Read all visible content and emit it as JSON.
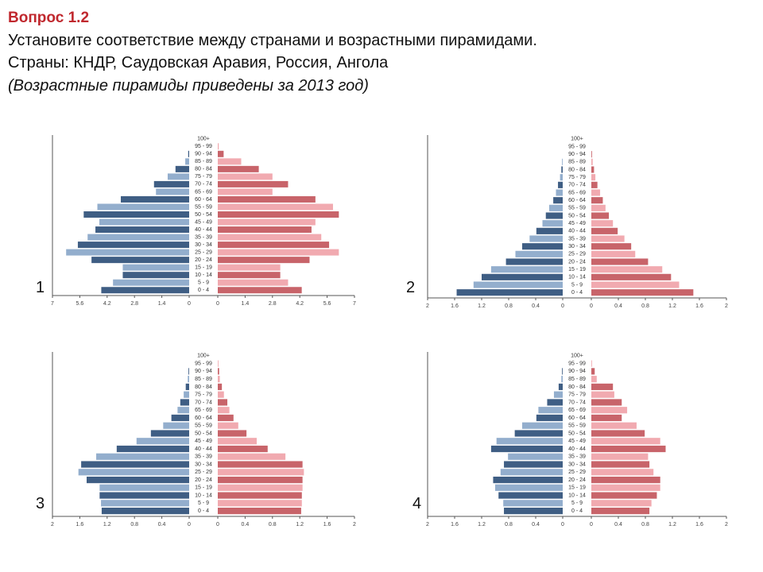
{
  "header": {
    "title": "Вопрос 1.2",
    "lines": [
      "Установите соответствие между странами и возрастными пирамидами.",
      "Страны: КНДР, Саудовская Аравия, Россия, Ангола"
    ],
    "note": "(Возрастные пирамиды приведены за 2013 год)"
  },
  "chart_data": [
    {
      "type": "pyramid",
      "label": "1",
      "categories": [
        "0 - 4",
        "5 - 9",
        "10 - 14",
        "15 - 19",
        "20 - 24",
        "25 - 29",
        "30 - 34",
        "35 - 39",
        "40 - 44",
        "45 - 49",
        "50 - 54",
        "55 - 59",
        "60 - 64",
        "65 - 69",
        "70 - 74",
        "75 - 79",
        "80 - 84",
        "85 - 89",
        "90 - 94",
        "95 - 99",
        "100+"
      ],
      "series": [
        {
          "colors": [
            "#3f5e84",
            "#93aecd"
          ],
          "values": [
            4.5,
            3.9,
            3.4,
            3.4,
            5.0,
            6.3,
            5.7,
            5.2,
            4.8,
            4.6,
            5.4,
            4.7,
            3.5,
            1.7,
            1.8,
            1.1,
            0.7,
            0.2,
            0.05,
            0,
            0
          ]
        },
        {
          "colors": [
            "#c8646a",
            "#f1aab0"
          ],
          "values": [
            4.3,
            3.6,
            3.2,
            3.2,
            4.7,
            6.2,
            5.7,
            5.3,
            4.8,
            5.0,
            6.2,
            5.9,
            5.0,
            2.8,
            3.6,
            2.8,
            2.1,
            1.2,
            0.3,
            0.05,
            0
          ]
        }
      ],
      "xlim": [
        0,
        7
      ],
      "xticks": [
        0,
        1.4,
        2.8,
        4.2,
        5.6,
        7
      ]
    },
    {
      "type": "pyramid",
      "label": "2",
      "categories": [
        "0 - 4",
        "5 - 9",
        "10 - 14",
        "15 - 19",
        "20 - 24",
        "25 - 29",
        "30 - 34",
        "35 - 39",
        "40 - 44",
        "45 - 49",
        "50 - 54",
        "55 - 59",
        "60 - 64",
        "65 - 69",
        "70 - 74",
        "75 - 79",
        "80 - 84",
        "85 - 89",
        "90 - 94",
        "95 - 99",
        "100+"
      ],
      "series": [
        {
          "colors": [
            "#3f5e84",
            "#93aecd"
          ],
          "values": [
            1.57,
            1.32,
            1.2,
            1.06,
            0.84,
            0.7,
            0.6,
            0.49,
            0.39,
            0.3,
            0.25,
            0.2,
            0.14,
            0.1,
            0.07,
            0.04,
            0.02,
            0.01,
            0,
            0,
            0
          ]
        },
        {
          "colors": [
            "#c8646a",
            "#f1aab0"
          ],
          "values": [
            1.51,
            1.3,
            1.18,
            1.05,
            0.84,
            0.65,
            0.59,
            0.49,
            0.39,
            0.32,
            0.26,
            0.21,
            0.17,
            0.13,
            0.09,
            0.06,
            0.04,
            0.02,
            0.01,
            0,
            0
          ]
        }
      ],
      "xlim": [
        0,
        2
      ],
      "xticks": [
        0,
        0.4,
        0.8,
        1.2,
        1.6,
        2
      ]
    },
    {
      "type": "pyramid",
      "label": "3",
      "categories": [
        "0 - 4",
        "5 - 9",
        "10 - 14",
        "15 - 19",
        "20 - 24",
        "25 - 29",
        "30 - 34",
        "35 - 39",
        "40 - 44",
        "45 - 49",
        "50 - 54",
        "55 - 59",
        "60 - 64",
        "65 - 69",
        "70 - 74",
        "75 - 79",
        "80 - 84",
        "85 - 89",
        "90 - 94",
        "95 - 99",
        "100+"
      ],
      "series": [
        {
          "colors": [
            "#3f5e84",
            "#93aecd"
          ],
          "values": [
            1.28,
            1.29,
            1.31,
            1.31,
            1.5,
            1.62,
            1.58,
            1.36,
            1.06,
            0.77,
            0.56,
            0.38,
            0.26,
            0.17,
            0.13,
            0.08,
            0.05,
            0.02,
            0.01,
            0,
            0
          ]
        },
        {
          "colors": [
            "#c8646a",
            "#f1aab0"
          ],
          "values": [
            1.22,
            1.23,
            1.23,
            1.24,
            1.24,
            1.26,
            1.24,
            0.99,
            0.73,
            0.57,
            0.42,
            0.3,
            0.23,
            0.17,
            0.14,
            0.09,
            0.06,
            0.03,
            0.02,
            0.01,
            0
          ]
        }
      ],
      "xlim": [
        0,
        2
      ],
      "xticks": [
        0,
        0.4,
        0.8,
        1.2,
        1.6,
        2
      ]
    },
    {
      "type": "pyramid",
      "label": "4",
      "categories": [
        "0 - 4",
        "5 - 9",
        "10 - 14",
        "15 - 19",
        "20 - 24",
        "25 - 29",
        "30 - 34",
        "35 - 39",
        "40 - 44",
        "45 - 49",
        "50 - 54",
        "55 - 59",
        "60 - 64",
        "65 - 69",
        "70 - 74",
        "75 - 79",
        "80 - 84",
        "85 - 89",
        "90 - 94",
        "95 - 99",
        "100+"
      ],
      "series": [
        {
          "colors": [
            "#3f5e84",
            "#93aecd"
          ],
          "values": [
            0.87,
            0.88,
            0.95,
            1.0,
            1.03,
            0.92,
            0.87,
            0.81,
            1.06,
            0.98,
            0.71,
            0.6,
            0.39,
            0.36,
            0.23,
            0.13,
            0.06,
            0.02,
            0.01,
            0,
            0
          ]
        },
        {
          "colors": [
            "#c8646a",
            "#f1aab0"
          ],
          "values": [
            0.86,
            0.89,
            0.97,
            1.02,
            1.02,
            0.92,
            0.86,
            0.84,
            1.1,
            1.02,
            0.79,
            0.67,
            0.45,
            0.53,
            0.45,
            0.34,
            0.32,
            0.08,
            0.05,
            0.01,
            0
          ]
        }
      ],
      "xlim": [
        0,
        2
      ],
      "xticks": [
        0,
        0.4,
        0.8,
        1.2,
        1.6,
        2
      ]
    }
  ]
}
